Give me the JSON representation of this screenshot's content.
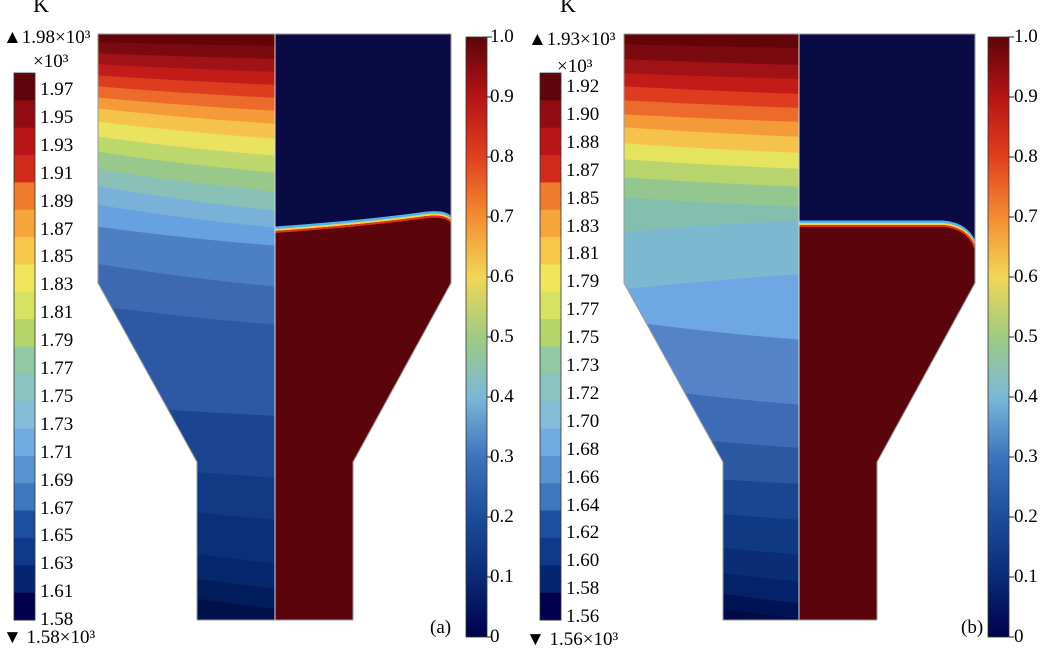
{
  "panels": [
    {
      "id": "a",
      "panel_label": "(a)",
      "unit": "K",
      "max_label": "▲1.98×10³",
      "min_label": "▼ 1.58×10³",
      "multiplier": "×10³",
      "temp_ticks": [
        "1.97",
        "1.95",
        "1.93",
        "1.91",
        "1.89",
        "1.87",
        "1.85",
        "1.83",
        "1.81",
        "1.79",
        "1.77",
        "1.75",
        "1.73",
        "1.71",
        "1.69",
        "1.67",
        "1.65",
        "1.63",
        "1.61",
        "1.58"
      ],
      "fraction_ticks": [
        "1.0",
        "0.9",
        "0.8",
        "0.7",
        "0.6",
        "0.5",
        "0.4",
        "0.3",
        "0.2",
        "0.1",
        "0"
      ],
      "interface_level": 0.6
    },
    {
      "id": "b",
      "panel_label": "(b)",
      "unit": "K",
      "max_label": "▲1.93×10³",
      "min_label": "▼ 1.56×10³",
      "multiplier": "×10³",
      "temp_ticks": [
        "1.92",
        "1.90",
        "1.88",
        "1.87",
        "1.85",
        "1.83",
        "1.81",
        "1.79",
        "1.77",
        "1.75",
        "1.73",
        "1.72",
        "1.70",
        "1.68",
        "1.66",
        "1.64",
        "1.62",
        "1.60",
        "1.58",
        "1.56"
      ],
      "fraction_ticks": [
        "1.0",
        "0.9",
        "0.8",
        "0.7",
        "0.6",
        "0.5",
        "0.4",
        "0.3",
        "0.2",
        "0.1",
        "0"
      ],
      "interface_level": 0.6
    }
  ],
  "colors": {
    "jet": [
      "#00004e",
      "#062570",
      "#0f3a8a",
      "#1c4f9f",
      "#2d64b1",
      "#3f78bf",
      "#5a93d2",
      "#72abe0",
      "#85bcd8",
      "#8ac4c0",
      "#92c8a3",
      "#9ecb84",
      "#b4d56a",
      "#d6e262",
      "#efe65a",
      "#f6c84a",
      "#f6a43c",
      "#ef7c2e",
      "#e35322",
      "#d22a1c",
      "#b81516",
      "#8f0d12",
      "#5e040a"
    ],
    "interior_top": "#5b040b",
    "top_dark": "#0a0a45"
  }
}
